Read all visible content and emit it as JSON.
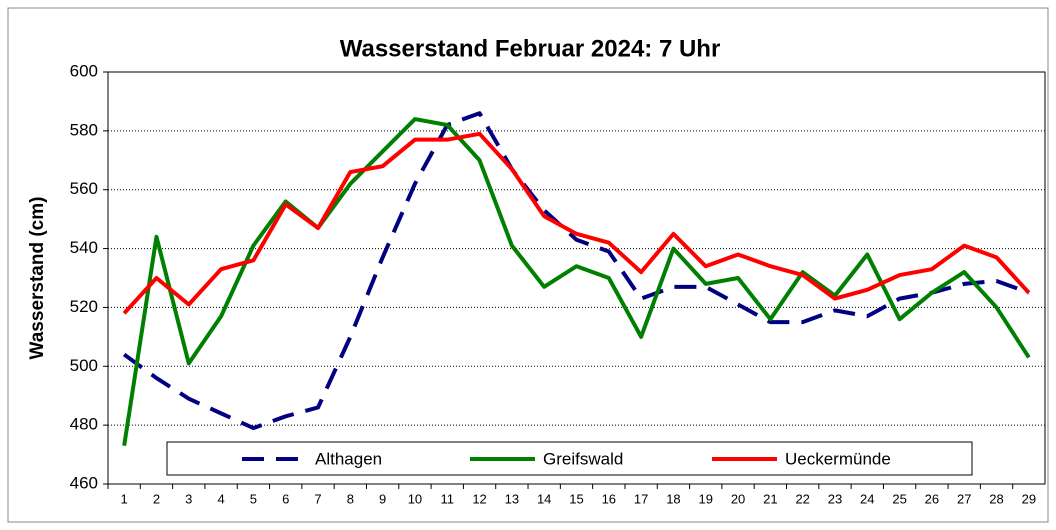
{
  "chart_data": {
    "type": "line",
    "title": "Wasserstand Februar 2024: 7 Uhr",
    "y_label": "Wasserstand (cm)",
    "categories": [
      "1",
      "2",
      "3",
      "4",
      "5",
      "6",
      "7",
      "8",
      "9",
      "10",
      "11",
      "12",
      "13",
      "14",
      "15",
      "16",
      "17",
      "18",
      "19",
      "20",
      "21",
      "22",
      "23",
      "24",
      "25",
      "26",
      "27",
      "28",
      "29"
    ],
    "series": [
      {
        "name": "Althagen",
        "color": "#000080",
        "dashed": true,
        "values": [
          504,
          496,
          489,
          484,
          479,
          483,
          486,
          510,
          537,
          562,
          582,
          586,
          567,
          553,
          543,
          539,
          523,
          527,
          527,
          521,
          515,
          515,
          519,
          517,
          523,
          525,
          528,
          529,
          525
        ]
      },
      {
        "name": "Greifswald",
        "color": "#008000",
        "values": [
          473,
          544,
          501,
          517,
          541,
          556,
          547,
          562,
          573,
          584,
          582,
          570,
          541,
          527,
          534,
          530,
          510,
          540,
          528,
          530,
          516,
          532,
          524,
          538,
          516,
          525,
          532,
          520,
          503
        ]
      },
      {
        "name": "Ueckermünde",
        "color": "#ff0000",
        "values": [
          518,
          530,
          521,
          533,
          536,
          555,
          547,
          566,
          568,
          577,
          577,
          579,
          567,
          551,
          545,
          542,
          532,
          545,
          534,
          538,
          534,
          531,
          523,
          526,
          531,
          533,
          541,
          537,
          525
        ]
      }
    ],
    "ylim": [
      460,
      600
    ],
    "yticks": [
      460,
      480,
      500,
      520,
      540,
      560,
      580,
      600
    ],
    "grid": true,
    "legend": "bottom"
  }
}
